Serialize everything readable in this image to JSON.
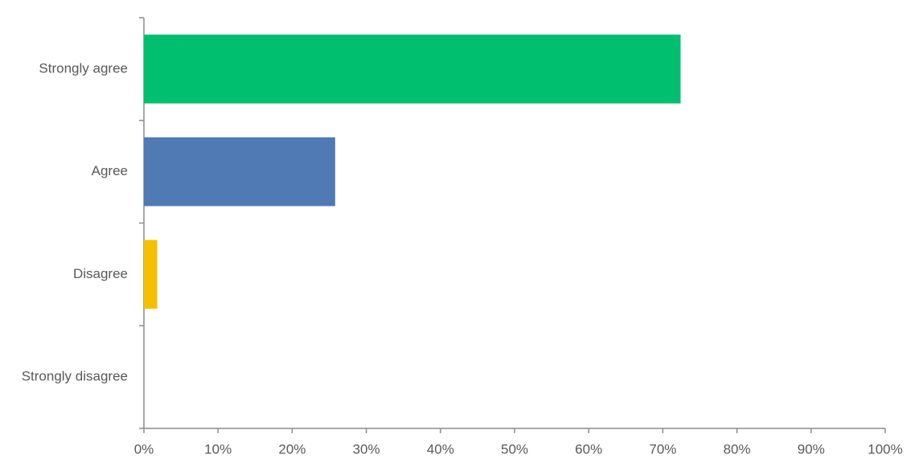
{
  "chart_data": {
    "type": "hbar",
    "categories": [
      "Strongly agree",
      "Agree",
      "Disagree",
      "Strongly disagree"
    ],
    "values": [
      72.4,
      25.8,
      1.8,
      0
    ],
    "colors": [
      "#00bf6f",
      "#4f7ab3",
      "#f5c000",
      "#a0a0a0"
    ],
    "xlim": [
      0,
      100
    ],
    "xticks": [
      {
        "value": 0,
        "label": "0%"
      },
      {
        "value": 10,
        "label": "10%"
      },
      {
        "value": 20,
        "label": "20%"
      },
      {
        "value": 30,
        "label": "30%"
      },
      {
        "value": 40,
        "label": "40%"
      },
      {
        "value": 50,
        "label": "50%"
      },
      {
        "value": 60,
        "label": "60%"
      },
      {
        "value": 70,
        "label": "70%"
      },
      {
        "value": 80,
        "label": "80%"
      },
      {
        "value": 90,
        "label": "90%"
      },
      {
        "value": 100,
        "label": "100%"
      }
    ],
    "grid": false
  }
}
